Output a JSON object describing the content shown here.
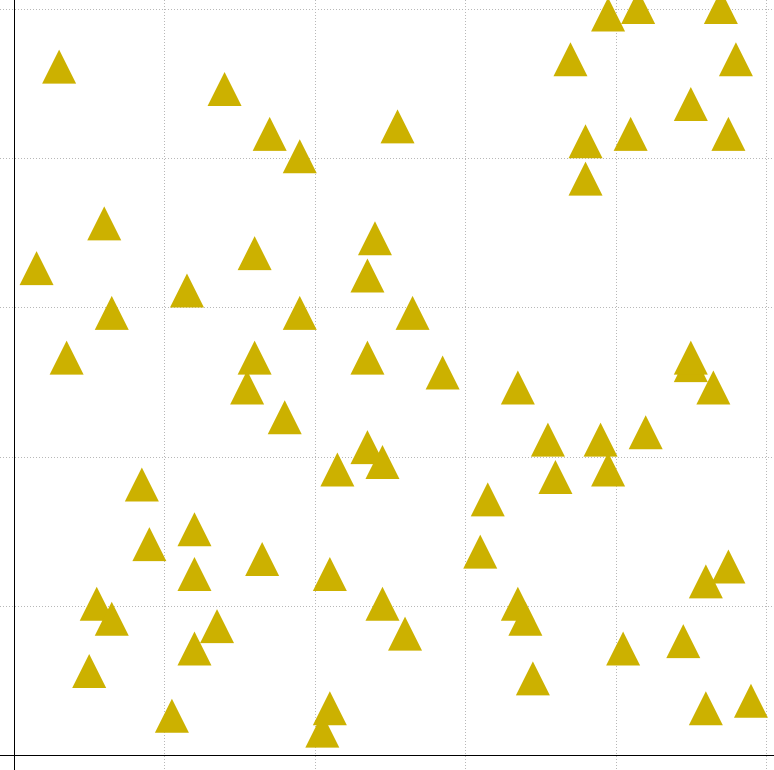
{
  "chart_data": {
    "type": "scatter",
    "title": "",
    "xlabel": "",
    "ylabel": "",
    "xlim": [
      0.0,
      1.0
    ],
    "ylim": [
      0.0,
      1.0
    ],
    "grid": true,
    "x_grid_values": [
      0.2,
      0.4,
      0.6,
      0.8,
      1.0
    ],
    "y_grid_values": [
      0.2,
      0.4,
      0.6,
      0.8,
      1.0
    ],
    "marker": "triangle-up",
    "marker_color": "#ccb100",
    "series": [
      {
        "points": [
          [
            0.06,
            0.92
          ],
          [
            0.28,
            0.89
          ],
          [
            0.34,
            0.83
          ],
          [
            0.38,
            0.8
          ],
          [
            0.51,
            0.84
          ],
          [
            0.12,
            0.71
          ],
          [
            0.03,
            0.65
          ],
          [
            0.23,
            0.62
          ],
          [
            0.13,
            0.59
          ],
          [
            0.32,
            0.67
          ],
          [
            0.38,
            0.59
          ],
          [
            0.48,
            0.69
          ],
          [
            0.47,
            0.64
          ],
          [
            0.53,
            0.59
          ],
          [
            0.07,
            0.53
          ],
          [
            0.32,
            0.53
          ],
          [
            0.31,
            0.49
          ],
          [
            0.36,
            0.45
          ],
          [
            0.47,
            0.53
          ],
          [
            0.57,
            0.51
          ],
          [
            0.67,
            0.49
          ],
          [
            0.47,
            0.41
          ],
          [
            0.43,
            0.38
          ],
          [
            0.49,
            0.39
          ],
          [
            0.17,
            0.36
          ],
          [
            0.18,
            0.28
          ],
          [
            0.24,
            0.3
          ],
          [
            0.24,
            0.24
          ],
          [
            0.33,
            0.26
          ],
          [
            0.42,
            0.24
          ],
          [
            0.11,
            0.2
          ],
          [
            0.13,
            0.18
          ],
          [
            0.27,
            0.17
          ],
          [
            0.24,
            0.14
          ],
          [
            0.1,
            0.11
          ],
          [
            0.21,
            0.05
          ],
          [
            0.42,
            0.06
          ],
          [
            0.41,
            0.03
          ],
          [
            0.49,
            0.2
          ],
          [
            0.52,
            0.16
          ],
          [
            0.62,
            0.27
          ],
          [
            0.63,
            0.34
          ],
          [
            0.71,
            0.42
          ],
          [
            0.72,
            0.37
          ],
          [
            0.78,
            0.42
          ],
          [
            0.79,
            0.38
          ],
          [
            0.84,
            0.43
          ],
          [
            0.67,
            0.2
          ],
          [
            0.68,
            0.18
          ],
          [
            0.69,
            0.1
          ],
          [
            0.81,
            0.14
          ],
          [
            0.89,
            0.15
          ],
          [
            0.92,
            0.23
          ],
          [
            0.95,
            0.25
          ],
          [
            0.9,
            0.52
          ],
          [
            0.93,
            0.49
          ],
          [
            0.92,
            0.06
          ],
          [
            0.98,
            0.07
          ],
          [
            0.74,
            0.93
          ],
          [
            0.79,
            0.99
          ],
          [
            0.83,
            1.0
          ],
          [
            0.94,
            1.0
          ],
          [
            0.96,
            0.93
          ],
          [
            0.9,
            0.87
          ],
          [
            0.95,
            0.83
          ],
          [
            0.76,
            0.82
          ],
          [
            0.82,
            0.83
          ],
          [
            0.76,
            0.77
          ],
          [
            0.9,
            0.53
          ]
        ]
      }
    ]
  }
}
